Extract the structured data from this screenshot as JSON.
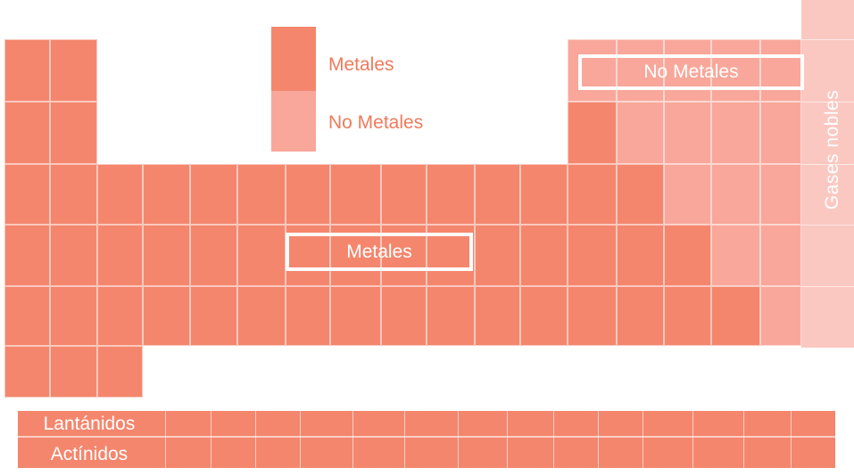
{
  "legend": {
    "metals_label": "Metales",
    "nonmetals_label": "No Metales",
    "metals_color": "#f4866d",
    "nonmetals_color": "#f9a79a"
  },
  "regions": {
    "metals_label": "Metales",
    "nonmetals_label": "No Metales",
    "noble_gases_label": "Gases nobles",
    "noble_gases_color": "#fbc8c1"
  },
  "series": {
    "lanthanides_label": "Lantánidos",
    "actinides_label": "Actínidos"
  }
}
